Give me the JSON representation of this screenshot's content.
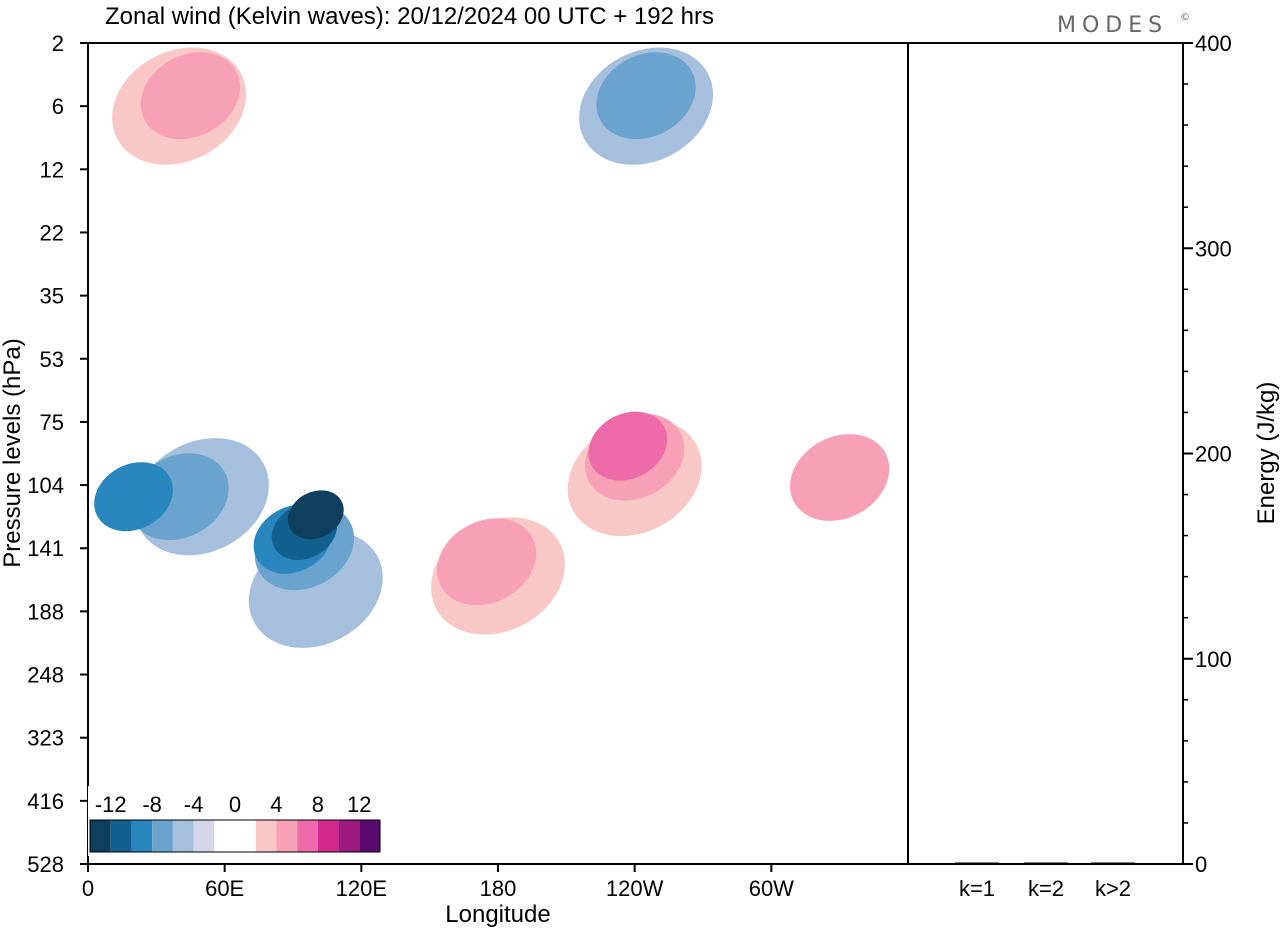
{
  "brand": "MODES",
  "brand_mark": "©",
  "chart_data": [
    {
      "type": "heatmap",
      "title": "Zonal wind (Kelvin waves):  20/12/2024  00 UTC  + 192 hrs",
      "xlabel": "Longitude",
      "ylabel": "Pressure levels (hPa)",
      "x_ticks": [
        "0",
        "60E",
        "120E",
        "180",
        "120W",
        "60W"
      ],
      "y_ticks": [
        "2",
        "6",
        "12",
        "22",
        "35",
        "53",
        "75",
        "104",
        "141",
        "188",
        "248",
        "323",
        "416",
        "528"
      ],
      "xlim": [
        0,
        360
      ],
      "colorbar": {
        "labels": [
          "-12",
          "-8",
          "-4",
          "0",
          "4",
          "8",
          "12"
        ],
        "colors": [
          "#0f3f5e",
          "#11608f",
          "#2a86be",
          "#6aa3cd",
          "#a6bfdc",
          "#d3d6e8",
          "#ffffff",
          "#ffffff",
          "#f9c8c6",
          "#f7a0b6",
          "#ef6aa8",
          "#d12a8c",
          "#9c1a7e",
          "#5a0a6e"
        ]
      },
      "features": [
        {
          "sign": "neg",
          "level": 1,
          "lon": 50,
          "p": 110
        },
        {
          "sign": "neg",
          "level": 2,
          "lon": 40,
          "p": 110
        },
        {
          "sign": "neg",
          "level": 3,
          "lon": 20,
          "p": 110
        },
        {
          "sign": "neg",
          "level": 1,
          "lon": 100,
          "p": 170
        },
        {
          "sign": "neg",
          "level": 2,
          "lon": 95,
          "p": 140
        },
        {
          "sign": "neg",
          "level": 3,
          "lon": 90,
          "p": 135
        },
        {
          "sign": "neg",
          "level": 4,
          "lon": 95,
          "p": 130
        },
        {
          "sign": "neg",
          "level": 5,
          "lon": 100,
          "p": 120
        },
        {
          "sign": "neg",
          "level": 1,
          "lon": 245,
          "p": 6
        },
        {
          "sign": "neg",
          "level": 2,
          "lon": 245,
          "p": 5
        },
        {
          "sign": "pos",
          "level": 1,
          "lon": 180,
          "p": 160
        },
        {
          "sign": "pos",
          "level": 2,
          "lon": 175,
          "p": 150
        },
        {
          "sign": "pos",
          "level": 1,
          "lon": 240,
          "p": 100
        },
        {
          "sign": "pos",
          "level": 2,
          "lon": 240,
          "p": 90
        },
        {
          "sign": "pos",
          "level": 3,
          "lon": 237,
          "p": 85
        },
        {
          "sign": "pos",
          "level": 2,
          "lon": 330,
          "p": 100
        },
        {
          "sign": "pos",
          "level": 1,
          "lon": 40,
          "p": 6
        },
        {
          "sign": "pos",
          "level": 2,
          "lon": 45,
          "p": 5
        }
      ]
    },
    {
      "type": "bar",
      "title": "",
      "ylabel": "Energy (J/kg)",
      "categories": [
        "k=1",
        "k=2",
        "k>2"
      ],
      "values": [
        0.5,
        0.4,
        0.6
      ],
      "ylim": [
        0,
        400
      ],
      "y_ticks": [
        "0",
        "100",
        "200",
        "300",
        "400"
      ]
    }
  ]
}
